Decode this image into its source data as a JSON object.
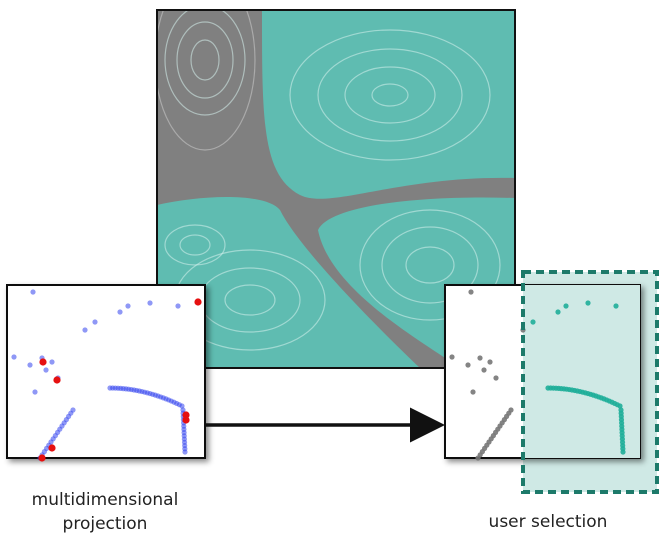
{
  "labels": {
    "projection": [
      "multidimensional",
      "projection"
    ],
    "selection": "user selection"
  }
}
